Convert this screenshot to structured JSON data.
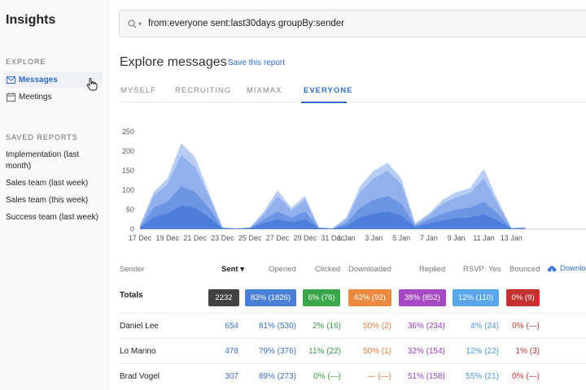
{
  "app": {
    "title": "Insights"
  },
  "sidebar": {
    "explore_label": "EXPLORE",
    "nav": [
      {
        "label": "Messages",
        "icon": "envelope-icon",
        "active": true
      },
      {
        "label": "Meetings",
        "icon": "calendar-icon",
        "active": false
      }
    ],
    "saved_reports_label": "SAVED REPORTS",
    "saved_reports": [
      "Implementation (last month)",
      "Sales team (last week)",
      "Sales team (this week)",
      "Success team (last week)"
    ]
  },
  "search": {
    "query": "from:everyone sent:last30days groupBy:sender"
  },
  "header": {
    "title": "Explore messages",
    "save_label": "Save this report"
  },
  "tabs": [
    {
      "label": "MYSELF",
      "active": false
    },
    {
      "label": "RECRUITING",
      "active": false
    },
    {
      "label": "MIXMAX",
      "active": false
    },
    {
      "label": "EVERYONE",
      "active": true
    }
  ],
  "chart_data": {
    "type": "area",
    "x": [
      "17 Dec",
      "18 Dec",
      "19 Dec",
      "20 Dec",
      "21 Dec",
      "22 Dec",
      "23 Dec",
      "24 Dec",
      "25 Dec",
      "26 Dec",
      "27 Dec",
      "28 Dec",
      "29 Dec",
      "30 Dec",
      "31 Dec",
      "1 Jan",
      "2 Jan",
      "3 Jan",
      "4 Jan",
      "5 Jan",
      "6 Jan",
      "7 Jan",
      "8 Jan",
      "9 Jan",
      "10 Jan",
      "11 Jan",
      "12 Jan",
      "13 Jan",
      "14 Jan"
    ],
    "x_tick_labels": [
      "17 Dec",
      "19 Dec",
      "21 Dec",
      "23 Dec",
      "25 Dec",
      "27 Dec",
      "29 Dec",
      "31 Dec",
      "1 Jan",
      "3 Jan",
      "5 Jan",
      "7 Jan",
      "9 Jan",
      "11 Jan",
      "13 Jan"
    ],
    "y_ticks": [
      0,
      50,
      100,
      150,
      200,
      250
    ],
    "ylim": [
      0,
      250
    ],
    "series": [
      {
        "values": [
          10,
          95,
          130,
          220,
          185,
          95,
          5,
          2,
          5,
          45,
          100,
          55,
          85,
          5,
          2,
          30,
          110,
          150,
          170,
          130,
          15,
          40,
          75,
          95,
          105,
          155,
          75,
          3,
          5
        ]
      },
      {
        "values": [
          8,
          85,
          115,
          190,
          160,
          85,
          4,
          2,
          4,
          38,
          85,
          48,
          75,
          4,
          2,
          25,
          95,
          130,
          150,
          115,
          12,
          35,
          65,
          82,
          92,
          130,
          65,
          3,
          4
        ]
      },
      {
        "values": [
          5,
          55,
          70,
          110,
          95,
          55,
          3,
          1,
          3,
          25,
          45,
          30,
          45,
          3,
          1,
          15,
          55,
          75,
          85,
          65,
          8,
          25,
          40,
          50,
          55,
          70,
          40,
          2,
          3
        ]
      },
      {
        "values": [
          3,
          30,
          40,
          60,
          55,
          30,
          2,
          1,
          2,
          15,
          25,
          18,
          25,
          2,
          1,
          8,
          30,
          40,
          45,
          35,
          5,
          15,
          22,
          28,
          30,
          38,
          22,
          1,
          2
        ]
      }
    ],
    "colors": [
      "#b8cdf3",
      "#92b1ec",
      "#6c95e3",
      "#4d7edb"
    ]
  },
  "table": {
    "columns": [
      "Sender",
      "Sent",
      "Opened",
      "Clicked",
      "Downloaded",
      "Replied",
      "RSVP: Yes",
      "Bounced"
    ],
    "sort_indicator": "▾",
    "download_label": "Downlo",
    "totals_label": "Totals",
    "totals": [
      "2232",
      "83% (1826)",
      "6% (76)",
      "62% (92)",
      "38% (852)",
      "12% (110)",
      "0% (9)"
    ],
    "total_colors": [
      "#424242",
      "#4a7fd8",
      "#3aa84a",
      "#ec8a3f",
      "#a649c4",
      "#5aa6eb",
      "#c53030"
    ],
    "value_colors": [
      "#3f6fc6",
      "#3f6fc6",
      "#3a9b46",
      "#e07b36",
      "#9a3fbb",
      "#4a96dc",
      "#c53030"
    ],
    "rows": [
      {
        "name": "Daniel Lee",
        "values": [
          "654",
          "81% (530)",
          "2% (16)",
          "50% (2)",
          "36% (234)",
          "4% (24)",
          "0% (—)"
        ]
      },
      {
        "name": "Lo Marino",
        "values": [
          "478",
          "79% (376)",
          "11% (22)",
          "50% (1)",
          "32% (154)",
          "12% (22)",
          "1% (3)"
        ]
      },
      {
        "name": "Brad Vogel",
        "values": [
          "307",
          "89% (273)",
          "0% (—)",
          "— (—)",
          "51% (158)",
          "55% (21)",
          "0% (—)"
        ]
      }
    ]
  }
}
